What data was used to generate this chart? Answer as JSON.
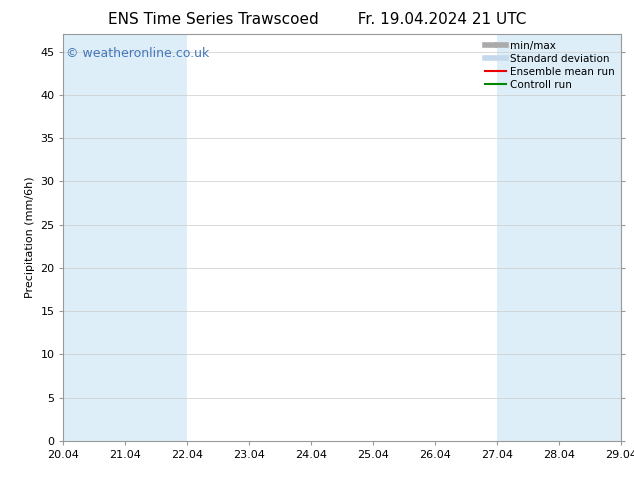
{
  "title_left": "ENS Time Series Trawscoed",
  "title_right": "Fr. 19.04.2024 21 UTC",
  "ylabel": "Precipitation (mm/6h)",
  "xlim": [
    20.04,
    29.04
  ],
  "ylim": [
    0,
    47
  ],
  "yticks": [
    0,
    5,
    10,
    15,
    20,
    25,
    30,
    35,
    40,
    45
  ],
  "xtick_labels": [
    "20.04",
    "21.04",
    "22.04",
    "23.04",
    "24.04",
    "25.04",
    "26.04",
    "27.04",
    "28.04",
    "29.04"
  ],
  "xtick_positions": [
    20.04,
    21.04,
    22.04,
    23.04,
    24.04,
    25.04,
    26.04,
    27.04,
    28.04,
    29.04
  ],
  "bg_color": "#ffffff",
  "plot_bg_color": "#ffffff",
  "shaded_band_color": "#ddeef8",
  "shaded_bands": [
    [
      20.04,
      21.04
    ],
    [
      21.04,
      22.04
    ],
    [
      27.04,
      28.04
    ],
    [
      28.04,
      29.04
    ]
  ],
  "watermark_text": "© weatheronline.co.uk",
  "watermark_color": "#4477bb",
  "watermark_fontsize": 9,
  "legend_entries": [
    {
      "label": "min/max",
      "color": "#aaaaaa",
      "linestyle": "-",
      "lw": 4
    },
    {
      "label": "Standard deviation",
      "color": "#c5d8ec",
      "linestyle": "-",
      "lw": 4
    },
    {
      "label": "Ensemble mean run",
      "color": "#ee0000",
      "linestyle": "-",
      "lw": 1.5
    },
    {
      "label": "Controll run",
      "color": "#008800",
      "linestyle": "-",
      "lw": 1.5
    }
  ],
  "title_fontsize": 11,
  "tick_fontsize": 8,
  "ylabel_fontsize": 8,
  "legend_fontsize": 7.5,
  "grid_color": "#cccccc",
  "spine_color": "#999999",
  "top_ylim": 47
}
